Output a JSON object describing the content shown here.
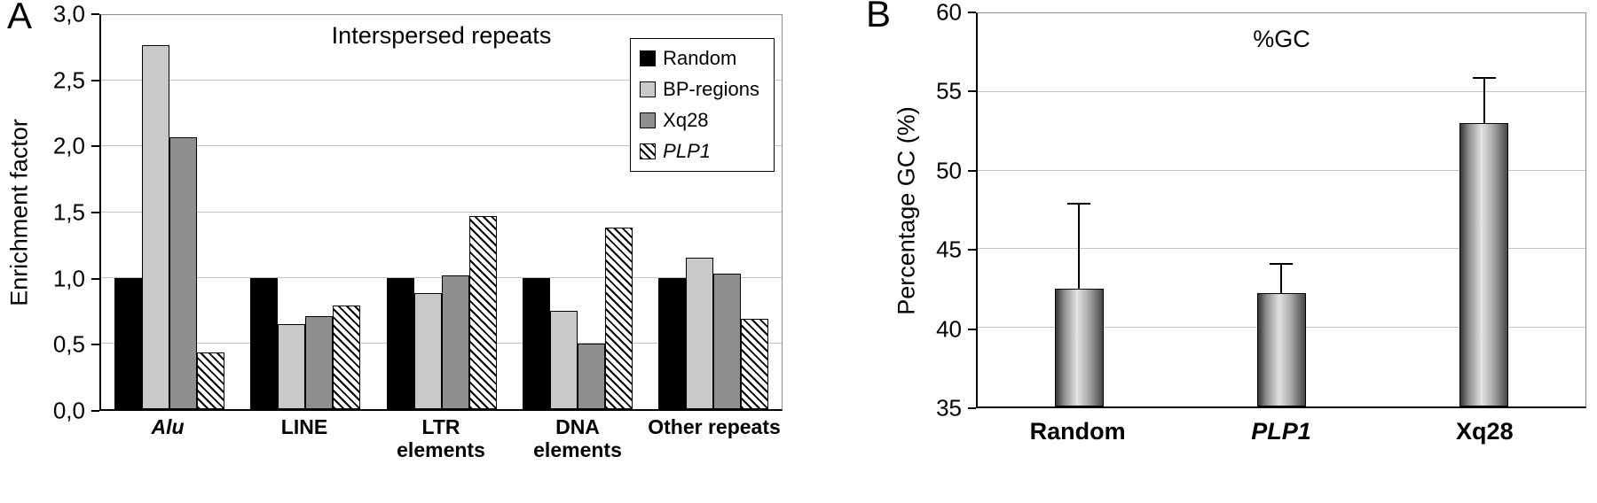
{
  "figure": {
    "background": "#ffffff"
  },
  "chart_data": [
    {
      "panel_label": "A",
      "type": "bar",
      "title": "Interspersed repeats",
      "xlabel": "",
      "ylabel": "Enrichment factor",
      "ylim": [
        0,
        3
      ],
      "ytick_step": 0.5,
      "ytick_labels": [
        "0,0",
        "0,5",
        "1,0",
        "1,5",
        "2,0",
        "2,5",
        "3,0"
      ],
      "grid": true,
      "legend_position": "top-right",
      "categories": [
        "Alu",
        "LINE",
        "LTR\nelements",
        "DNA\nelements",
        "Other repeats"
      ],
      "category_styles": [
        "bold-italic",
        "bold",
        "bold",
        "bold",
        "bold"
      ],
      "series": [
        {
          "name": "Random",
          "color": "#000000",
          "pattern": "solid",
          "italic": false,
          "values": [
            1.0,
            1.0,
            1.0,
            1.0,
            1.0
          ]
        },
        {
          "name": "BP-regions",
          "color": "#c9c9c9",
          "pattern": "solid",
          "italic": false,
          "values": [
            2.77,
            0.65,
            0.88,
            0.75,
            1.15
          ]
        },
        {
          "name": "Xq28",
          "color": "#8f8f8f",
          "pattern": "solid",
          "italic": false,
          "values": [
            2.07,
            0.71,
            1.02,
            0.5,
            1.03
          ]
        },
        {
          "name": "PLP1",
          "color": "#ffffff",
          "pattern": "hatch",
          "italic": true,
          "values": [
            0.43,
            0.79,
            1.47,
            1.38,
            0.69
          ]
        }
      ]
    },
    {
      "panel_label": "B",
      "type": "bar",
      "title": "%GC",
      "xlabel": "",
      "ylabel": "Percentage GC (%)",
      "ylim": [
        35,
        60
      ],
      "ytick_step": 5,
      "ytick_labels": [
        "35",
        "40",
        "45",
        "50",
        "55",
        "60"
      ],
      "grid": true,
      "categories": [
        "Random",
        "PLP1",
        "Xq28"
      ],
      "category_styles": [
        "bold",
        "bold-italic",
        "bold"
      ],
      "series": [
        {
          "name": "Percentage GC",
          "gradient": true,
          "values": [
            42.5,
            42.2,
            53.0
          ],
          "errors_up": [
            5.5,
            2.0,
            3.0
          ]
        }
      ]
    }
  ]
}
